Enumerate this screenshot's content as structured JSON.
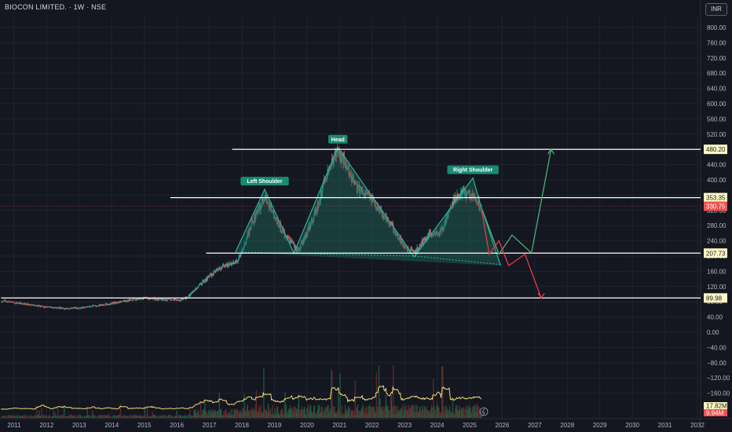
{
  "header": {
    "title": "BIOCON LIMITED. · 1W · NSE",
    "currency": "INR"
  },
  "colors": {
    "background": "#141720",
    "grid": "#1f2330",
    "up": "#26a69a",
    "down": "#ef5350",
    "level_line": "#ffffff",
    "level_label_bg": "#fff9c4",
    "current_price_bg": "#ef5350",
    "pattern_fill": "#1f6b5e",
    "pattern_line": "#2bb39b",
    "bull_path": "#4caf78",
    "bear_path": "#e53945",
    "volume_ma": "#e9d97a"
  },
  "chart_data": {
    "type": "candlestick",
    "title": "BIOCON LIMITED. · 1W · NSE",
    "y_axis": {
      "ticks": [
        800,
        760,
        720,
        680,
        640,
        600,
        560,
        520,
        480,
        440,
        400,
        360,
        320,
        280,
        240,
        200,
        160,
        120,
        80,
        40,
        0,
        -40,
        -80,
        -120,
        -160
      ],
      "tick_labels": [
        "800.00",
        "760.00",
        "720.00",
        "680.00",
        "640.00",
        "600.00",
        "560.00",
        "520.00",
        "480.00",
        "440.00",
        "400.00",
        "360.00",
        "320.00",
        "280.00",
        "240.00",
        "200.00",
        "160.00",
        "120.00",
        "80.00",
        "40.00",
        "0.00",
        "−40.00",
        "−80.00",
        "−120.00",
        "−160.00"
      ],
      "range": [
        -170,
        830
      ]
    },
    "x_axis": {
      "ticks": [
        2011,
        2012,
        2013,
        2014,
        2015,
        2016,
        2017,
        2018,
        2019,
        2020,
        2021,
        2022,
        2023,
        2024,
        2025,
        2026,
        2027,
        2028,
        2029,
        2030,
        2031,
        2032
      ],
      "range": [
        2010.6,
        2032.2
      ]
    },
    "price_path": [
      [
        2010.6,
        82
      ],
      [
        2011.0,
        78
      ],
      [
        2011.5,
        72
      ],
      [
        2012.0,
        66
      ],
      [
        2012.5,
        62
      ],
      [
        2013.0,
        64
      ],
      [
        2013.5,
        70
      ],
      [
        2014.0,
        76
      ],
      [
        2014.5,
        84
      ],
      [
        2015.0,
        90
      ],
      [
        2015.5,
        86
      ],
      [
        2016.0,
        84
      ],
      [
        2016.3,
        90
      ],
      [
        2016.6,
        118
      ],
      [
        2017.0,
        148
      ],
      [
        2017.4,
        172
      ],
      [
        2017.8,
        182
      ],
      [
        2018.0,
        212
      ],
      [
        2018.3,
        290
      ],
      [
        2018.7,
        355
      ],
      [
        2018.9,
        320
      ],
      [
        2019.3,
        255
      ],
      [
        2019.7,
        215
      ],
      [
        2020.0,
        265
      ],
      [
        2020.3,
        330
      ],
      [
        2020.6,
        420
      ],
      [
        2020.9,
        470
      ],
      [
        2021.1,
        455
      ],
      [
        2021.5,
        380
      ],
      [
        2021.9,
        360
      ],
      [
        2022.2,
        320
      ],
      [
        2022.6,
        278
      ],
      [
        2023.0,
        222
      ],
      [
        2023.3,
        210
      ],
      [
        2023.7,
        255
      ],
      [
        2024.1,
        262
      ],
      [
        2024.5,
        348
      ],
      [
        2024.8,
        365
      ],
      [
        2025.1,
        360
      ],
      [
        2025.35,
        330
      ]
    ],
    "levels": [
      {
        "value": 480.2,
        "label": "480.20",
        "x_start": 2017.7
      },
      {
        "value": 353.35,
        "label": "353.35",
        "x_start": 2015.8
      },
      {
        "value": 207.73,
        "label": "207.73",
        "x_start": 2016.9
      },
      {
        "value": 89.98,
        "label": "89.98",
        "x_start": 2010.6
      }
    ],
    "current_price": {
      "value": 330.75,
      "label": "330.75"
    },
    "pattern": {
      "name": "Head and Shoulders",
      "points": [
        [
          2017.8,
          210
        ],
        [
          2018.7,
          375
        ],
        [
          2019.6,
          208
        ],
        [
          2020.95,
          485
        ],
        [
          2023.3,
          198
        ],
        [
          2025.1,
          405
        ],
        [
          2025.35,
          330
        ],
        [
          2025.95,
          175
        ]
      ],
      "neckline": [
        [
          2018.0,
          210
        ],
        [
          2023.3,
          200
        ],
        [
          2025.95,
          178
        ]
      ],
      "labels": [
        {
          "text": "Left Shoulder",
          "x": 2018.7,
          "y": 375
        },
        {
          "text": "Head",
          "x": 2020.95,
          "y": 485
        },
        {
          "text": "Right Shoulder",
          "x": 2025.1,
          "y": 405
        }
      ]
    },
    "bull_path": [
      [
        2025.35,
        330
      ],
      [
        2025.9,
        205
      ],
      [
        2026.3,
        255
      ],
      [
        2026.9,
        208
      ],
      [
        2027.5,
        480
      ]
    ],
    "bear_path": [
      [
        2025.35,
        330
      ],
      [
        2025.6,
        205
      ],
      [
        2025.9,
        240
      ],
      [
        2026.2,
        175
      ],
      [
        2026.7,
        205
      ],
      [
        2027.2,
        90
      ]
    ],
    "volume": {
      "labels": [
        {
          "text": "17.82M",
          "value": 17.82,
          "color": "#fff9c4"
        },
        {
          "text": "9.94M",
          "value": 9.94,
          "color": "#ef5350"
        }
      ]
    }
  }
}
